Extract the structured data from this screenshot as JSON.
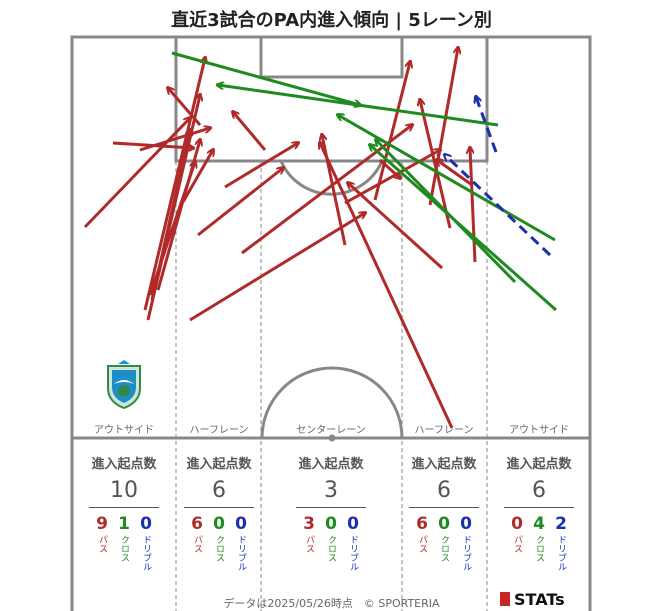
{
  "title": "直近3試合のPA内進入傾向 | 5レーン別",
  "lanes": [
    {
      "label": "アウトサイド",
      "header": "進入起点数",
      "total": "10",
      "pass": "9",
      "cross": "1",
      "dribble": "0"
    },
    {
      "label": "ハーフレーン",
      "header": "進入起点数",
      "total": "6",
      "pass": "6",
      "cross": "0",
      "dribble": "0"
    },
    {
      "label": "センターレーン",
      "header": "進入起点数",
      "total": "3",
      "pass": "3",
      "cross": "0",
      "dribble": "0"
    },
    {
      "label": "ハーフレーン",
      "header": "進入起点数",
      "total": "6",
      "pass": "6",
      "cross": "0",
      "dribble": "0"
    },
    {
      "label": "アウトサイド",
      "header": "進入起点数",
      "total": "6",
      "pass": "0",
      "cross": "4",
      "dribble": "2"
    }
  ],
  "legend": {
    "pass": "パス",
    "cross": "クロス",
    "dribble": "ドリブル"
  },
  "colors": {
    "pass": "#b02a2a",
    "cross": "#1f8a1f",
    "dribble": "#1a2faa",
    "lines": "#888888"
  },
  "footer": "データは2025/05/26時点　© SPORTERIA",
  "brand": "STATs"
}
